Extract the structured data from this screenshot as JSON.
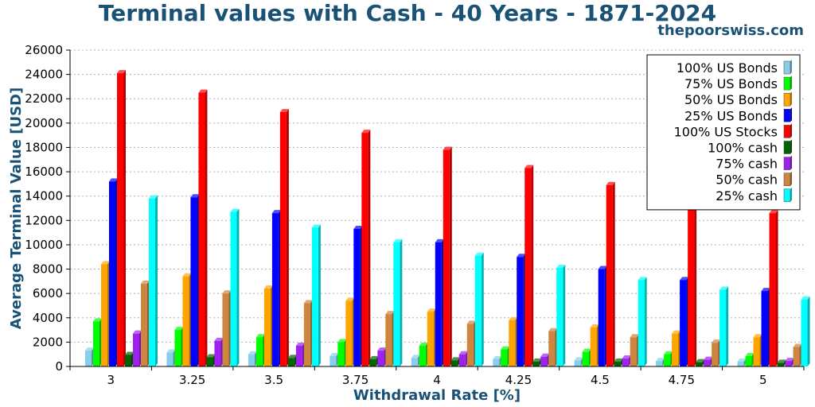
{
  "chart_data": {
    "type": "bar",
    "title": "Terminal values with Cash - 40 Years - 1871-2024",
    "source": "thepoorswiss.com",
    "xlabel": "Withdrawal Rate [%]",
    "ylabel": "Average Terminal Value [USD]",
    "ylim": [
      0,
      26000
    ],
    "yticks": [
      "0",
      "2000",
      "4000",
      "6000",
      "8000",
      "10000",
      "12000",
      "14000",
      "16000",
      "18000",
      "20000",
      "22000",
      "24000",
      "26000"
    ],
    "grid": "horizontal dotted",
    "legend_position": "top-right",
    "categories": [
      "3",
      "3.25",
      "3.5",
      "3.75",
      "4",
      "4.25",
      "4.5",
      "4.75",
      "5"
    ],
    "series": [
      {
        "name": "100% US Bonds",
        "color": "#87ceeb",
        "values": [
          1300,
          1150,
          1000,
          850,
          700,
          600,
          500,
          450,
          400
        ]
      },
      {
        "name": "75% US Bonds",
        "color": "#00ff00",
        "values": [
          3700,
          3000,
          2400,
          2000,
          1700,
          1400,
          1200,
          1000,
          850
        ]
      },
      {
        "name": "50% US Bonds",
        "color": "#ffa500",
        "values": [
          8400,
          7400,
          6400,
          5400,
          4500,
          3800,
          3200,
          2700,
          2400
        ]
      },
      {
        "name": "25% US Bonds",
        "color": "#0000ff",
        "values": [
          15200,
          13900,
          12600,
          11300,
          10200,
          9000,
          8000,
          7100,
          6200
        ]
      },
      {
        "name": "100% US Stocks",
        "color": "#ff0000",
        "values": [
          24100,
          22500,
          20900,
          19200,
          17800,
          16300,
          14900,
          13500,
          12600
        ]
      },
      {
        "name": "100% cash",
        "color": "#006400",
        "values": [
          950,
          750,
          700,
          600,
          500,
          400,
          400,
          350,
          300
        ]
      },
      {
        "name": "75% cash",
        "color": "#a020f0",
        "values": [
          2700,
          2100,
          1700,
          1300,
          1000,
          800,
          650,
          550,
          450
        ]
      },
      {
        "name": "50% cash",
        "color": "#cd853f",
        "values": [
          6800,
          6000,
          5200,
          4300,
          3500,
          2900,
          2400,
          1950,
          1600
        ]
      },
      {
        "name": "25% cash",
        "color": "#00ffff",
        "values": [
          13800,
          12700,
          11400,
          10200,
          9100,
          8100,
          7100,
          6300,
          5500
        ]
      }
    ]
  }
}
